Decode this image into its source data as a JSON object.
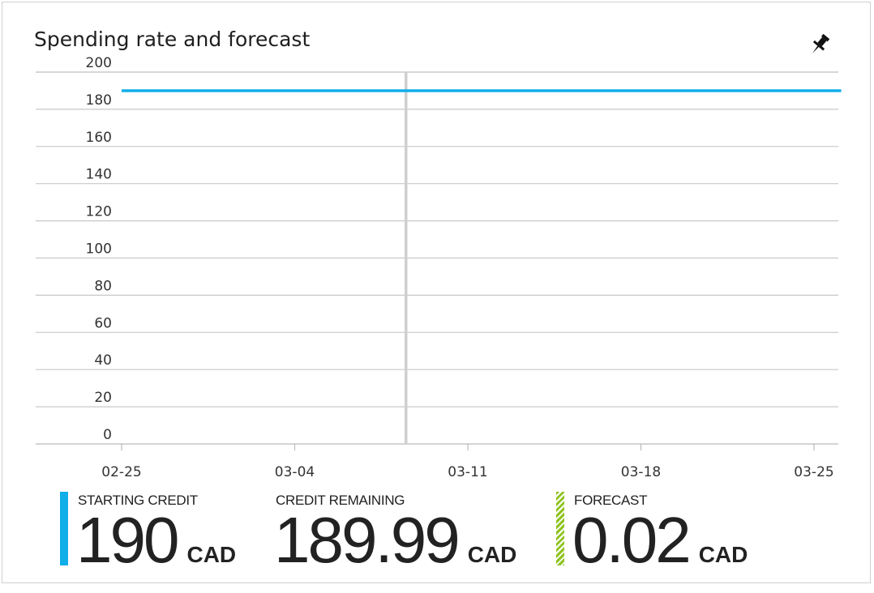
{
  "tile": {
    "title": "Spending rate and forecast",
    "pin_icon": "pin-icon"
  },
  "chart_data": {
    "type": "line",
    "title": "Spending rate and forecast",
    "xlabel": "",
    "ylabel": "",
    "ylim": [
      0,
      200
    ],
    "yticks": [
      "0",
      "20",
      "40",
      "60",
      "80",
      "100",
      "120",
      "140",
      "160",
      "180",
      "200"
    ],
    "x_date_range": [
      "2016-02-25",
      "2016-03-25"
    ],
    "xticks": [
      {
        "label": "02-25",
        "day": 0
      },
      {
        "label": "03-04",
        "day": 7
      },
      {
        "label": "03-11",
        "day": 14
      },
      {
        "label": "03-18",
        "day": 21
      },
      {
        "label": "03-25",
        "day": 28
      }
    ],
    "today_marker_day": 11.5,
    "grid": true,
    "series": [
      {
        "name": "Credit remaining",
        "color": "#10aee8",
        "points": [
          {
            "day": 0,
            "value": 190
          },
          {
            "day": 29.1,
            "value": 190
          }
        ]
      }
    ]
  },
  "summary": {
    "starting_credit": {
      "label": "STARTING CREDIT",
      "value": "190",
      "unit": "CAD",
      "color": "#10aee8"
    },
    "credit_remaining": {
      "label": "CREDIT REMAINING",
      "value": "189.99",
      "unit": "CAD"
    },
    "forecast": {
      "label": "FORECAST",
      "value": "0.02",
      "unit": "CAD",
      "color": "#8fc31f"
    }
  }
}
